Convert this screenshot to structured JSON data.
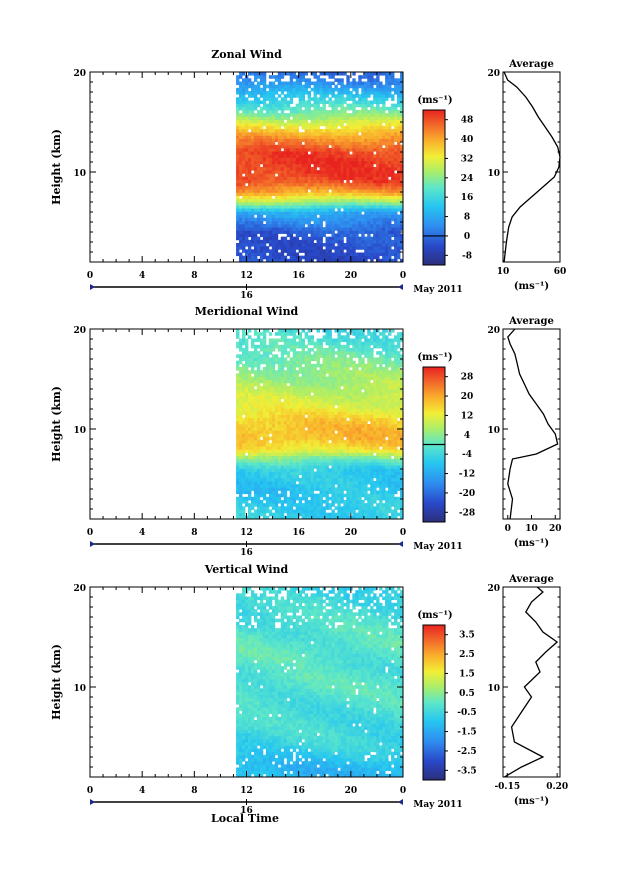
{
  "figure": {
    "xlabel": "Local Time",
    "date_label": "May 2011",
    "day_label": "16",
    "unit_label": "(ms⁻¹)",
    "avg_title": "Average",
    "ylabel": "Height (km)",
    "x_ticks": [
      "0",
      "4",
      "8",
      "12",
      "16",
      "20",
      "0"
    ],
    "y_ticks": [
      "10",
      "20"
    ]
  },
  "chart_data": [
    {
      "type": "heatmap",
      "title": "Zonal Wind",
      "xlabel": "",
      "ylabel": "Height (km)",
      "xlim": [
        0,
        24
      ],
      "ylim": [
        1,
        20
      ],
      "data_start_hour": 11.2,
      "colorbar": {
        "label": "(ms⁻¹)",
        "ticks": [
          "48",
          "40",
          "32",
          "24",
          "16",
          "8",
          "0",
          "-8"
        ],
        "min": -12,
        "max": 52,
        "zero_line": 0
      },
      "profile_rows": [
        [
          2,
          -4
        ],
        [
          4,
          -2
        ],
        [
          6,
          8
        ],
        [
          7,
          26
        ],
        [
          8,
          40
        ],
        [
          9,
          48
        ],
        [
          10,
          50
        ],
        [
          11,
          50
        ],
        [
          12,
          49
        ],
        [
          13,
          44
        ],
        [
          14,
          38
        ],
        [
          15,
          30
        ],
        [
          16,
          22
        ],
        [
          17,
          16
        ],
        [
          18,
          10
        ],
        [
          19,
          4
        ],
        [
          20,
          0
        ]
      ],
      "average_profile": {
        "title": "Average",
        "xlabel": "(ms⁻¹)",
        "x_ticks": [
          "10",
          "60"
        ],
        "xlim": [
          10,
          60
        ],
        "points": [
          [
            11,
            1
          ],
          [
            13,
            3
          ],
          [
            15,
            4.5
          ],
          [
            18,
            5.5
          ],
          [
            25,
            6.5
          ],
          [
            35,
            7.5
          ],
          [
            45,
            8.5
          ],
          [
            55,
            9.5
          ],
          [
            59,
            10.5
          ],
          [
            60,
            11.5
          ],
          [
            58,
            12.5
          ],
          [
            53,
            13.5
          ],
          [
            47,
            14.5
          ],
          [
            41,
            15.5
          ],
          [
            36,
            16.5
          ],
          [
            30,
            17.5
          ],
          [
            22,
            18.5
          ],
          [
            14,
            19.2
          ],
          [
            11,
            20
          ]
        ]
      }
    },
    {
      "type": "heatmap",
      "title": "Meridional Wind",
      "xlabel": "",
      "ylabel": "Height (km)",
      "xlim": [
        0,
        24
      ],
      "ylim": [
        1,
        20
      ],
      "data_start_hour": 11.2,
      "colorbar": {
        "label": "(ms⁻¹)",
        "ticks": [
          "28",
          "20",
          "12",
          "4",
          "-4",
          "-12",
          "-20",
          "-28"
        ],
        "min": -32,
        "max": 32,
        "zero_line": 0
      },
      "profile_rows": [
        [
          2,
          -6
        ],
        [
          4,
          -8
        ],
        [
          6,
          -6
        ],
        [
          7,
          2
        ],
        [
          8,
          14
        ],
        [
          9,
          18
        ],
        [
          10,
          18
        ],
        [
          11,
          16
        ],
        [
          12,
          12
        ],
        [
          13,
          10
        ],
        [
          14,
          8
        ],
        [
          15,
          6
        ],
        [
          16,
          4
        ],
        [
          17,
          2
        ],
        [
          18,
          0
        ],
        [
          19,
          -2
        ],
        [
          20,
          -4
        ]
      ],
      "average_profile": {
        "title": "Average",
        "xlabel": "(ms⁻¹)",
        "x_ticks": [
          "0",
          "10",
          "20"
        ],
        "xlim": [
          -2,
          22
        ],
        "points": [
          [
            1,
            1
          ],
          [
            2,
            3
          ],
          [
            0,
            4.5
          ],
          [
            1,
            6
          ],
          [
            2,
            7
          ],
          [
            12,
            7.5
          ],
          [
            21,
            8.5
          ],
          [
            20,
            9.5
          ],
          [
            17,
            10.5
          ],
          [
            15,
            11.5
          ],
          [
            12,
            12.5
          ],
          [
            9,
            13.5
          ],
          [
            7,
            14.5
          ],
          [
            5,
            15.5
          ],
          [
            4,
            16.5
          ],
          [
            3,
            17.5
          ],
          [
            1,
            18.5
          ],
          [
            0,
            19.2
          ],
          [
            3,
            20
          ]
        ]
      }
    },
    {
      "type": "heatmap",
      "title": "Vertical Wind",
      "xlabel": "Local Time",
      "ylabel": "Height (km)",
      "xlim": [
        0,
        24
      ],
      "ylim": [
        1,
        20
      ],
      "data_start_hour": 11.2,
      "colorbar": {
        "label": "(ms⁻¹)",
        "ticks": [
          "3.5",
          "2.5",
          "1.5",
          "0.5",
          "-0.5",
          "-1.5",
          "-2.5",
          "-3.5"
        ],
        "min": -4,
        "max": 4
      },
      "profile_rows": [
        [
          2,
          -1.2
        ],
        [
          4,
          -0.6
        ],
        [
          6,
          -0.4
        ],
        [
          8,
          -0.3
        ],
        [
          10,
          -0.1
        ],
        [
          12,
          -0.2
        ],
        [
          14,
          0
        ],
        [
          16,
          -0.2
        ],
        [
          18,
          -0.4
        ],
        [
          20,
          -0.6
        ]
      ],
      "average_profile": {
        "title": "Average",
        "xlabel": "(ms⁻¹)",
        "x_ticks": [
          "-0.15",
          "0.20"
        ],
        "xlim": [
          -0.18,
          0.22
        ],
        "points": [
          [
            -0.17,
            1
          ],
          [
            -0.05,
            2
          ],
          [
            0.1,
            3
          ],
          [
            -0.1,
            4.5
          ],
          [
            -0.12,
            6
          ],
          [
            -0.05,
            7.5
          ],
          [
            0.02,
            9
          ],
          [
            -0.03,
            10
          ],
          [
            0.08,
            11.5
          ],
          [
            0.05,
            12.5
          ],
          [
            0.12,
            13.5
          ],
          [
            0.2,
            14.5
          ],
          [
            0.1,
            15.5
          ],
          [
            0.05,
            16.5
          ],
          [
            -0.02,
            17.5
          ],
          [
            0.02,
            18.5
          ],
          [
            0.1,
            19.5
          ],
          [
            0.06,
            20
          ]
        ]
      }
    }
  ]
}
